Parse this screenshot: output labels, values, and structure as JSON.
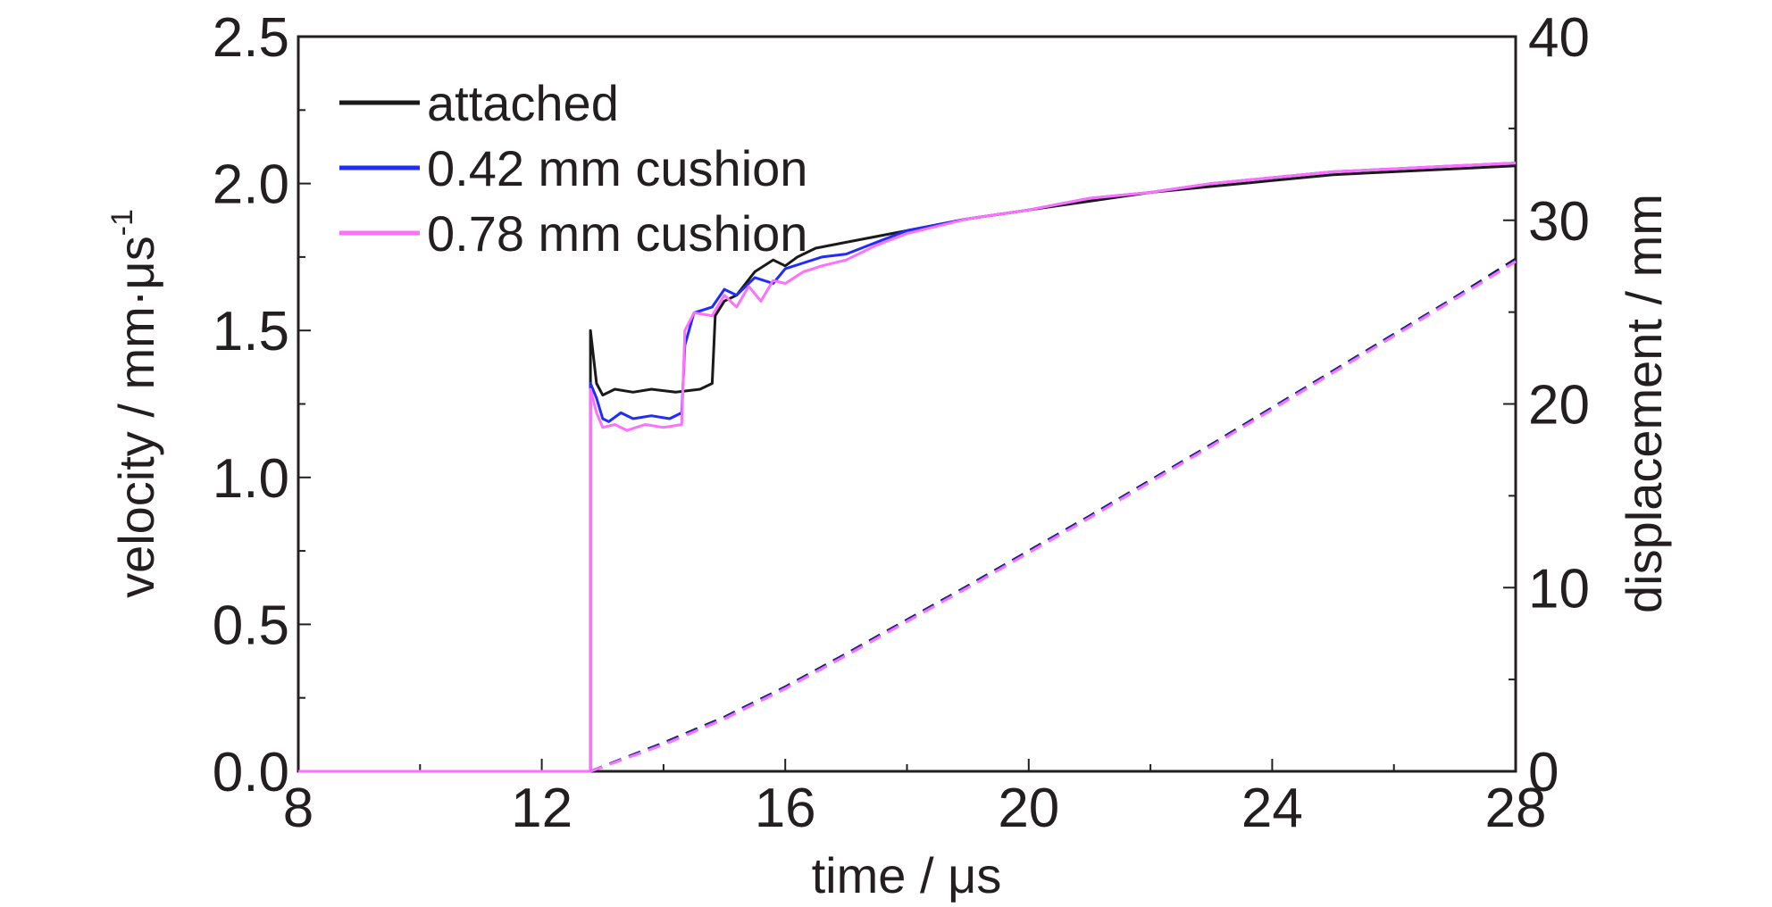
{
  "chart_data": {
    "type": "line",
    "xlabel": "time / μs",
    "ylabel_left": {
      "main": "velocity / mm·μs",
      "sup": "-1"
    },
    "ylabel_right": "displacement / mm",
    "xlim": [
      8,
      28
    ],
    "ylim_left": [
      0.0,
      2.5
    ],
    "ylim_right": [
      0,
      40
    ],
    "x_ticks": [
      "8",
      "12",
      "16",
      "20",
      "24",
      "28"
    ],
    "y_left_ticks": [
      "0.0",
      "0.5",
      "1.0",
      "1.5",
      "2.0",
      "2.5"
    ],
    "y_right_ticks": [
      "0",
      "10",
      "20",
      "30",
      "40"
    ],
    "legend_position": "top-left",
    "colors": {
      "attached": "#1a1a1a",
      "cushion_042": "#1f2bff",
      "cushion_078": "#ff70ff",
      "axis": "#231f20"
    },
    "series": [
      {
        "name": "attached",
        "axis": "left",
        "color_key": "attached",
        "points": [
          [
            8,
            0
          ],
          [
            12.8,
            0
          ],
          [
            12.8,
            1.5
          ],
          [
            12.9,
            1.32
          ],
          [
            13.0,
            1.28
          ],
          [
            13.2,
            1.3
          ],
          [
            13.5,
            1.29
          ],
          [
            13.8,
            1.3
          ],
          [
            14.2,
            1.29
          ],
          [
            14.6,
            1.3
          ],
          [
            14.8,
            1.32
          ],
          [
            14.85,
            1.55
          ],
          [
            15.0,
            1.6
          ],
          [
            15.2,
            1.62
          ],
          [
            15.5,
            1.7
          ],
          [
            15.8,
            1.74
          ],
          [
            16.0,
            1.72
          ],
          [
            16.2,
            1.75
          ],
          [
            16.5,
            1.78
          ],
          [
            17.0,
            1.8
          ],
          [
            17.5,
            1.82
          ],
          [
            18.0,
            1.84
          ],
          [
            19.0,
            1.88
          ],
          [
            20.0,
            1.91
          ],
          [
            21.0,
            1.94
          ],
          [
            22.0,
            1.97
          ],
          [
            23.0,
            1.99
          ],
          [
            24.0,
            2.01
          ],
          [
            25.0,
            2.03
          ],
          [
            26.0,
            2.04
          ],
          [
            27.0,
            2.05
          ],
          [
            28.0,
            2.06
          ]
        ]
      },
      {
        "name": "0.42 mm cushion",
        "axis": "left",
        "color_key": "cushion_042",
        "points": [
          [
            8,
            0
          ],
          [
            12.8,
            0
          ],
          [
            12.8,
            1.32
          ],
          [
            12.9,
            1.27
          ],
          [
            13.0,
            1.2
          ],
          [
            13.1,
            1.19
          ],
          [
            13.3,
            1.22
          ],
          [
            13.5,
            1.2
          ],
          [
            13.8,
            1.21
          ],
          [
            14.1,
            1.2
          ],
          [
            14.3,
            1.22
          ],
          [
            14.35,
            1.45
          ],
          [
            14.5,
            1.56
          ],
          [
            14.8,
            1.58
          ],
          [
            15.0,
            1.64
          ],
          [
            15.2,
            1.62
          ],
          [
            15.5,
            1.68
          ],
          [
            15.8,
            1.66
          ],
          [
            16.0,
            1.71
          ],
          [
            16.3,
            1.73
          ],
          [
            16.6,
            1.75
          ],
          [
            17.0,
            1.76
          ],
          [
            17.5,
            1.8
          ],
          [
            18.0,
            1.84
          ],
          [
            19.0,
            1.88
          ],
          [
            20.0,
            1.91
          ],
          [
            21.0,
            1.95
          ],
          [
            22.0,
            1.97
          ],
          [
            23.0,
            2.0
          ],
          [
            24.0,
            2.02
          ],
          [
            25.0,
            2.04
          ],
          [
            26.0,
            2.05
          ],
          [
            27.0,
            2.06
          ],
          [
            28.0,
            2.07
          ]
        ]
      },
      {
        "name": "0.78 mm cushion",
        "axis": "left",
        "color_key": "cushion_078",
        "points": [
          [
            8,
            0
          ],
          [
            12.8,
            0
          ],
          [
            12.8,
            1.3
          ],
          [
            12.9,
            1.22
          ],
          [
            13.0,
            1.17
          ],
          [
            13.2,
            1.18
          ],
          [
            13.4,
            1.16
          ],
          [
            13.7,
            1.18
          ],
          [
            14.0,
            1.17
          ],
          [
            14.3,
            1.18
          ],
          [
            14.35,
            1.5
          ],
          [
            14.5,
            1.56
          ],
          [
            14.8,
            1.55
          ],
          [
            15.0,
            1.62
          ],
          [
            15.2,
            1.58
          ],
          [
            15.4,
            1.65
          ],
          [
            15.6,
            1.6
          ],
          [
            15.8,
            1.67
          ],
          [
            16.0,
            1.66
          ],
          [
            16.3,
            1.7
          ],
          [
            16.6,
            1.72
          ],
          [
            17.0,
            1.74
          ],
          [
            17.5,
            1.79
          ],
          [
            18.0,
            1.83
          ],
          [
            19.0,
            1.88
          ],
          [
            20.0,
            1.91
          ],
          [
            21.0,
            1.95
          ],
          [
            22.0,
            1.97
          ],
          [
            23.0,
            2.0
          ],
          [
            24.0,
            2.02
          ],
          [
            25.0,
            2.04
          ],
          [
            26.0,
            2.05
          ],
          [
            27.0,
            2.06
          ],
          [
            28.0,
            2.07
          ]
        ]
      },
      {
        "name": "attached",
        "axis": "right",
        "style": "dashed",
        "color_key": "attached",
        "points": [
          [
            12.8,
            0
          ],
          [
            14,
            1.55
          ],
          [
            15,
            2.95
          ],
          [
            16,
            4.6
          ],
          [
            17,
            6.4
          ],
          [
            18,
            8.25
          ],
          [
            19,
            10.1
          ],
          [
            20,
            12.0
          ],
          [
            21,
            13.9
          ],
          [
            22,
            15.85
          ],
          [
            23,
            17.8
          ],
          [
            24,
            19.8
          ],
          [
            25,
            21.8
          ],
          [
            26,
            23.8
          ],
          [
            27,
            25.8
          ],
          [
            28,
            27.9
          ]
        ]
      },
      {
        "name": "0.42 mm cushion",
        "axis": "right",
        "style": "dashed",
        "color_key": "cushion_042",
        "points": [
          [
            12.8,
            0
          ],
          [
            14,
            1.5
          ],
          [
            15,
            2.9
          ],
          [
            16,
            4.55
          ],
          [
            17,
            6.35
          ],
          [
            18,
            8.2
          ],
          [
            19,
            10.05
          ],
          [
            20,
            11.95
          ],
          [
            21,
            13.85
          ],
          [
            22,
            15.8
          ],
          [
            23,
            17.75
          ],
          [
            24,
            19.75
          ],
          [
            25,
            21.75
          ],
          [
            26,
            23.75
          ],
          [
            27,
            25.75
          ],
          [
            28,
            27.8
          ]
        ]
      },
      {
        "name": "0.78 mm cushion",
        "axis": "right",
        "style": "dashed",
        "color_key": "cushion_078",
        "points": [
          [
            12.8,
            0
          ],
          [
            14,
            1.45
          ],
          [
            15,
            2.85
          ],
          [
            16,
            4.5
          ],
          [
            17,
            6.3
          ],
          [
            18,
            8.15
          ],
          [
            19,
            10.0
          ],
          [
            20,
            11.9
          ],
          [
            21,
            13.8
          ],
          [
            22,
            15.75
          ],
          [
            23,
            17.7
          ],
          [
            24,
            19.7
          ],
          [
            25,
            21.7
          ],
          [
            26,
            23.7
          ],
          [
            27,
            25.7
          ],
          [
            28,
            27.75
          ]
        ]
      }
    ]
  }
}
